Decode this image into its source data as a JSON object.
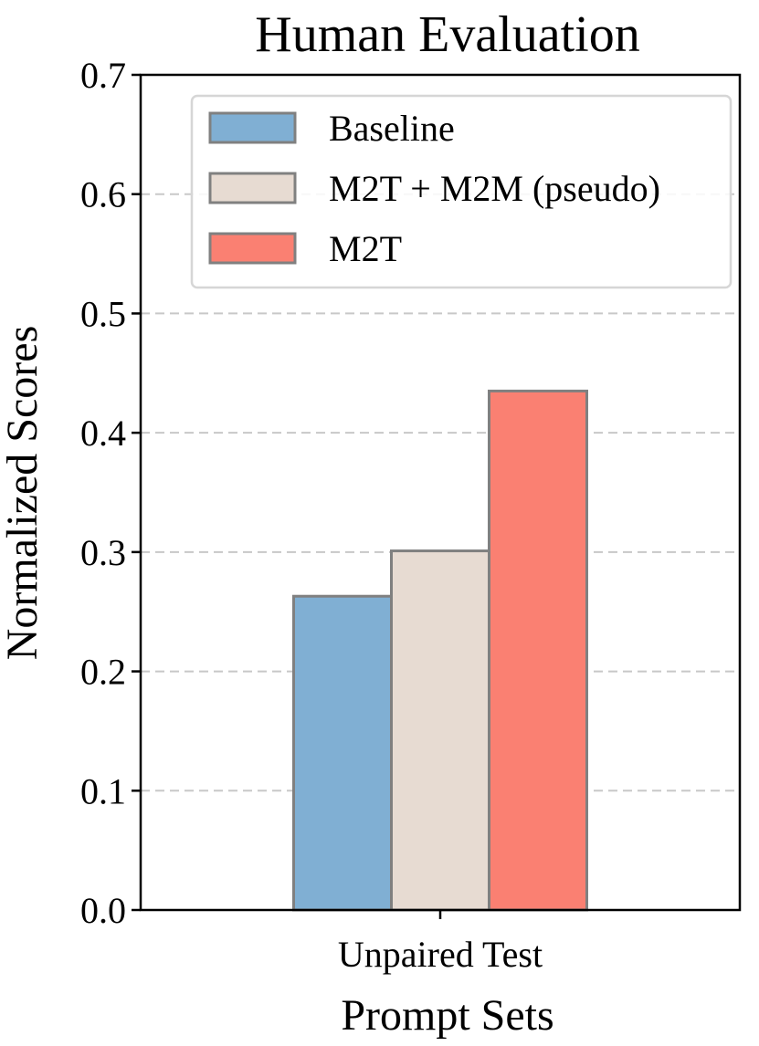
{
  "chart_data": {
    "type": "bar",
    "title": "Human Evaluation",
    "xlabel": "Prompt Sets",
    "ylabel": "Normalized Scores",
    "categories": [
      "Unpaired Test"
    ],
    "series": [
      {
        "name": "Baseline",
        "values": [
          0.263
        ],
        "color": "#80afd3"
      },
      {
        "name": "M2T + M2M (pseudo)",
        "values": [
          0.301
        ],
        "color": "#e7dbd2"
      },
      {
        "name": "M2T",
        "values": [
          0.435
        ],
        "color": "#fa8072"
      }
    ],
    "ylim": [
      0,
      0.7
    ],
    "yticks": [
      0.0,
      0.1,
      0.2,
      0.3,
      0.4,
      0.5,
      0.6,
      0.7
    ],
    "ytick_labels": [
      "0.0",
      "0.1",
      "0.2",
      "0.3",
      "0.4",
      "0.5",
      "0.6",
      "0.7"
    ],
    "grid": "y-dashed",
    "legend_position": "top-right",
    "bar_edge_color": "#808080",
    "grid_color": "#c8c8c8"
  }
}
